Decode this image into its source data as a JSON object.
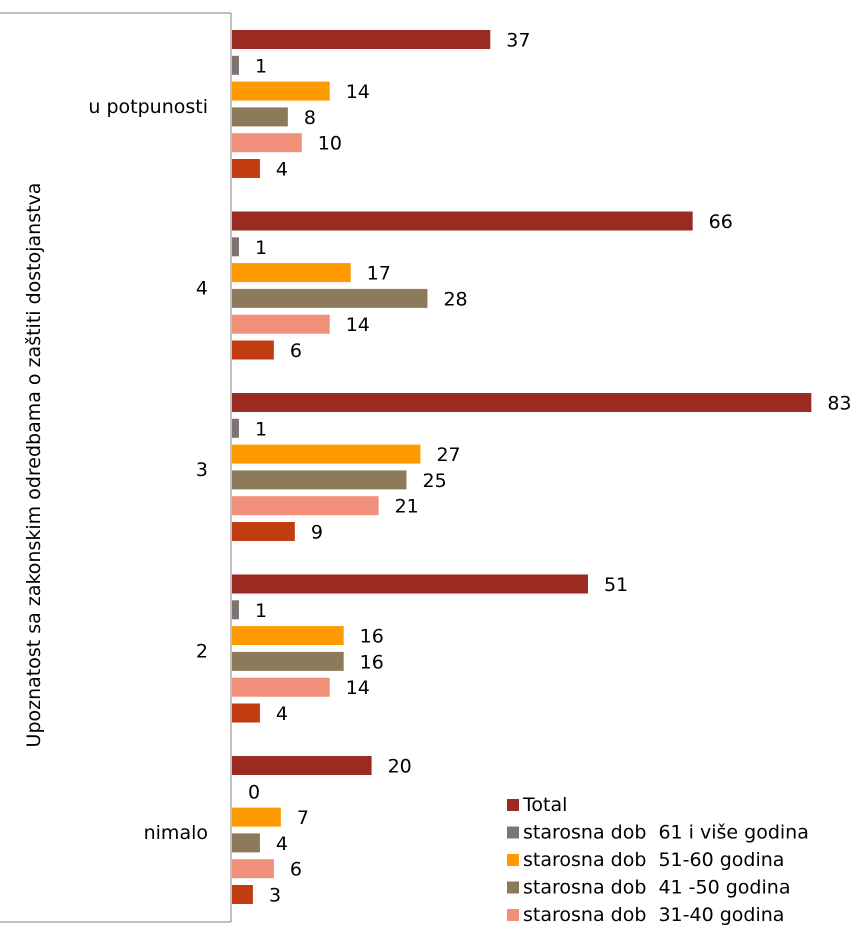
{
  "chart_data": {
    "type": "bar",
    "orientation": "horizontal",
    "ylabel": "Upoznatost sa zakonskim odredbama o zaštiti dostojanstva",
    "categories": [
      "u potpunosti",
      "4",
      "3",
      "2",
      "nimalo"
    ],
    "series": [
      {
        "name": "Total",
        "color": "#9B2B22",
        "values": [
          37,
          66,
          83,
          51,
          20
        ]
      },
      {
        "name": "starosna dob  61 i više godina",
        "color": "#7D7571",
        "values": [
          1,
          1,
          1,
          1,
          0
        ]
      },
      {
        "name": "starosna dob  51-60 godina",
        "color": "#FF9900",
        "values": [
          14,
          17,
          27,
          16,
          7
        ]
      },
      {
        "name": "starosna dob  41 -50 godina",
        "color": "#8B7B5A",
        "values": [
          8,
          28,
          25,
          16,
          4
        ]
      },
      {
        "name": "starosna dob  31-40 godina",
        "color": "#F0907A",
        "values": [
          10,
          14,
          21,
          14,
          6
        ]
      },
      {
        "name": "",
        "color": "#C23C12",
        "values": [
          4,
          6,
          9,
          4,
          3
        ]
      }
    ],
    "xlim": [
      0,
      86
    ],
    "grid": false,
    "legend_position": "bottom-right"
  }
}
